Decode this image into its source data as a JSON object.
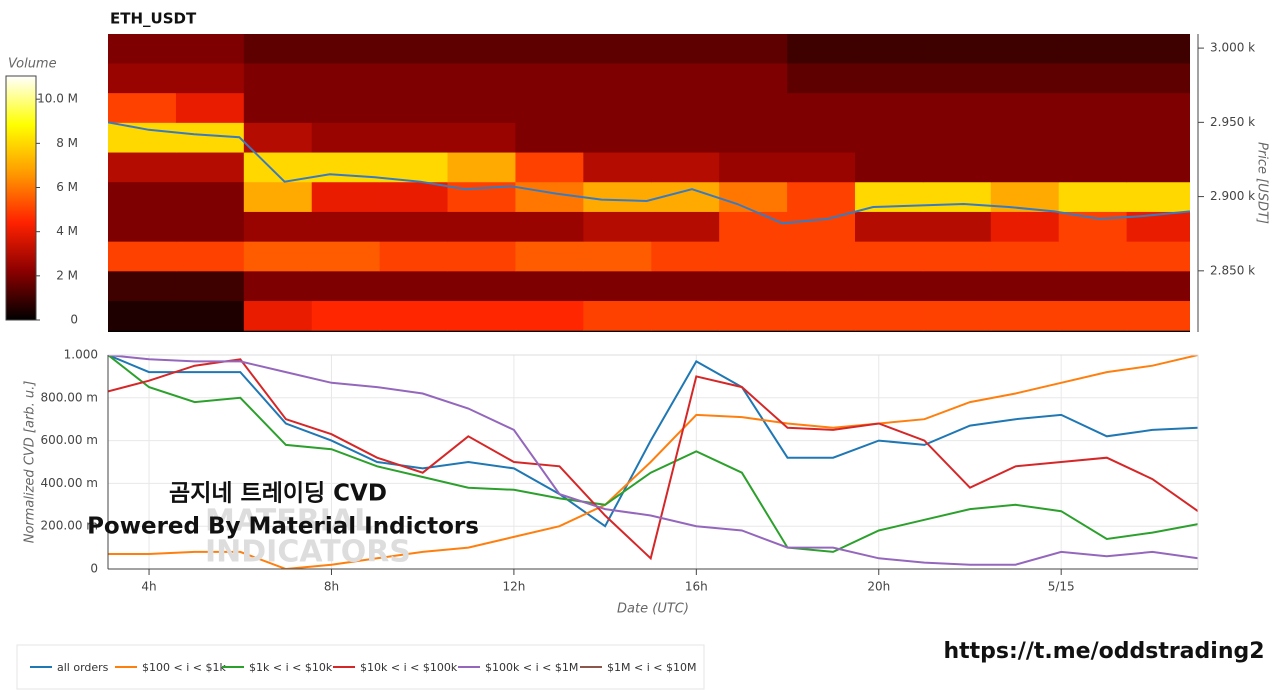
{
  "chart_data": [
    {
      "type": "heatmap",
      "title": "ETH_USDT",
      "colorbar_title": "Volume",
      "y_label": "Price [USDT]",
      "xlim": [
        3.1,
        27.0
      ],
      "ylim": [
        2808.8,
        3009.5
      ],
      "yticks": [
        {
          "value": 2850,
          "label": "2.850 k"
        },
        {
          "value": 2900,
          "label": "2.900 k"
        },
        {
          "value": 2950,
          "label": "2.950 k"
        },
        {
          "value": 3000,
          "label": "3.000 k"
        }
      ],
      "zlim": [
        0,
        11.05
      ],
      "zticks": [
        0,
        {
          "value": 2,
          "label": "2 M"
        },
        {
          "value": 4,
          "label": "4 M"
        },
        {
          "value": 6,
          "label": "6 M"
        },
        {
          "value": 8,
          "label": "8 M"
        },
        {
          "value": 10,
          "label": "10.0 M"
        }
      ],
      "colorscale": [
        "#000000",
        "#8b0000",
        "#ff2200",
        "#ff9900",
        "#ffff00",
        "#ffffff"
      ],
      "time_bins": [
        3.1,
        4.6,
        6.1,
        7.6,
        9.1,
        10.6,
        12.1,
        13.6,
        15.1,
        16.6,
        18.1,
        19.6,
        21.1,
        22.6,
        24.1,
        25.6,
        27.1
      ],
      "price_bins": [
        2810,
        2830,
        2850,
        2870,
        2890,
        2910,
        2930,
        2950,
        2970,
        2990,
        3010
      ],
      "z": [
        [
          0.5,
          0.5,
          4,
          4.5,
          4.5,
          4.5,
          4.5,
          5,
          5,
          5,
          5,
          5,
          5,
          5,
          5,
          5
        ],
        [
          1,
          1,
          2,
          2,
          2,
          2,
          2,
          2,
          2,
          2,
          2,
          2,
          2,
          2,
          2,
          2
        ],
        [
          5,
          5,
          5.5,
          5.5,
          5,
          5,
          5.5,
          5.5,
          5,
          5,
          5,
          5,
          5,
          5,
          5,
          5
        ],
        [
          2,
          2,
          2.5,
          2.5,
          2.5,
          2.5,
          2.5,
          3,
          3,
          5,
          5,
          3,
          3,
          4,
          5,
          4
        ],
        [
          2,
          2,
          7,
          4,
          4,
          5,
          6,
          7,
          7,
          6,
          5,
          8,
          8,
          7,
          8,
          8
        ],
        [
          3,
          3,
          8,
          8,
          8,
          7,
          5,
          3,
          3,
          2.5,
          2.5,
          2,
          2,
          2,
          2,
          2
        ],
        [
          8,
          8,
          3,
          2.5,
          2.5,
          2.5,
          2,
          2,
          2,
          2,
          2,
          2,
          2,
          2,
          2,
          2
        ],
        [
          5,
          4,
          2,
          2,
          2,
          2,
          2,
          2,
          2,
          2,
          2,
          2,
          2,
          2,
          2,
          2
        ],
        [
          2.5,
          2.5,
          2,
          2,
          2,
          2,
          2,
          2,
          2,
          2,
          1.5,
          1.5,
          1.5,
          1.5,
          1.5,
          1.5
        ],
        [
          2,
          2,
          1.5,
          1.5,
          1.5,
          1.5,
          1.5,
          1.5,
          1.5,
          1.5,
          1,
          1,
          1,
          1,
          1,
          1
        ]
      ],
      "price_color": "#3a7bbf",
      "x": [
        3.1,
        4,
        5,
        6,
        7,
        8,
        9,
        10,
        11,
        12,
        13,
        14,
        15,
        16,
        17,
        18,
        19,
        20,
        21,
        22,
        23,
        24,
        25,
        26,
        27
      ],
      "price": [
        2950,
        2945,
        2942,
        2940,
        2910,
        2915,
        2913,
        2910,
        2905,
        2907,
        2902,
        2898,
        2897,
        2905,
        2895,
        2882,
        2885,
        2893,
        2894,
        2895,
        2893,
        2890,
        2885,
        2887,
        2890
      ]
    },
    {
      "type": "line",
      "x_label": "Date (UTC)",
      "y_label": "Normalized CVD [arb. u.]",
      "xlim": [
        3.1,
        27.0
      ],
      "ylim": [
        0,
        1.0
      ],
      "xticks": [
        {
          "value": 4,
          "label": "4h"
        },
        {
          "value": 8,
          "label": "8h"
        },
        {
          "value": 12,
          "label": "12h"
        },
        {
          "value": 16,
          "label": "16h"
        },
        {
          "value": 20,
          "label": "20h"
        },
        {
          "value": 24,
          "label": "5/15"
        }
      ],
      "yticks": [
        0,
        {
          "value": 0.2,
          "label": "200.00 m"
        },
        {
          "value": 0.4,
          "label": "400.00 m"
        },
        {
          "value": 0.6,
          "label": "600.00 m"
        },
        {
          "value": 0.8,
          "label": "800.00 m"
        },
        {
          "value": 1.0,
          "label": "1.000"
        }
      ],
      "grid": true,
      "x": [
        3.1,
        4,
        5,
        6,
        7,
        8,
        9,
        10,
        11,
        12,
        13,
        14,
        15,
        16,
        17,
        18,
        19,
        20,
        21,
        22,
        23,
        24,
        25,
        26,
        27
      ],
      "series": [
        {
          "name": "all orders",
          "color": "#1f77b4",
          "values": [
            1.0,
            0.92,
            0.92,
            0.92,
            0.68,
            0.6,
            0.5,
            0.47,
            0.5,
            0.47,
            0.35,
            0.2,
            0.6,
            0.97,
            0.85,
            0.52,
            0.52,
            0.6,
            0.58,
            0.67,
            0.7,
            0.72,
            0.62,
            0.65,
            0.66
          ]
        },
        {
          "name": "$100 < i < $1k",
          "color": "#ff7f0e",
          "values": [
            0.07,
            0.07,
            0.08,
            0.08,
            0.0,
            0.02,
            0.05,
            0.08,
            0.1,
            0.15,
            0.2,
            0.3,
            0.5,
            0.72,
            0.71,
            0.68,
            0.66,
            0.68,
            0.7,
            0.78,
            0.82,
            0.87,
            0.92,
            0.95,
            1.0
          ]
        },
        {
          "name": "$1k < i < $10k",
          "color": "#2ca02c",
          "values": [
            1.0,
            0.85,
            0.78,
            0.8,
            0.58,
            0.56,
            0.48,
            0.43,
            0.38,
            0.37,
            0.33,
            0.3,
            0.45,
            0.55,
            0.45,
            0.1,
            0.08,
            0.18,
            0.23,
            0.28,
            0.3,
            0.27,
            0.14,
            0.17,
            0.21
          ]
        },
        {
          "name": "$10k < i < $100k",
          "color": "#d62728",
          "values": [
            0.83,
            0.88,
            0.95,
            0.98,
            0.7,
            0.63,
            0.52,
            0.45,
            0.62,
            0.5,
            0.48,
            0.25,
            0.05,
            0.9,
            0.85,
            0.66,
            0.65,
            0.68,
            0.6,
            0.38,
            0.48,
            0.5,
            0.52,
            0.42,
            0.27
          ]
        },
        {
          "name": "$100k < i < $1M",
          "color": "#9467bd",
          "values": [
            1.0,
            0.98,
            0.97,
            0.97,
            0.92,
            0.87,
            0.85,
            0.82,
            0.75,
            0.65,
            0.35,
            0.28,
            0.25,
            0.2,
            0.18,
            0.1,
            0.1,
            0.05,
            0.03,
            0.02,
            0.02,
            0.08,
            0.06,
            0.08,
            0.05
          ]
        },
        {
          "name": "$1M < i < $10M",
          "color": "#8c564b"
        }
      ],
      "watermark": [
        "곰지네 트레이딩 CVD",
        "Powered By Material Indictors"
      ],
      "logo_text": [
        "MATERIAL",
        "INDICATORS"
      ],
      "link": "https://t.me/oddstrading2"
    }
  ]
}
